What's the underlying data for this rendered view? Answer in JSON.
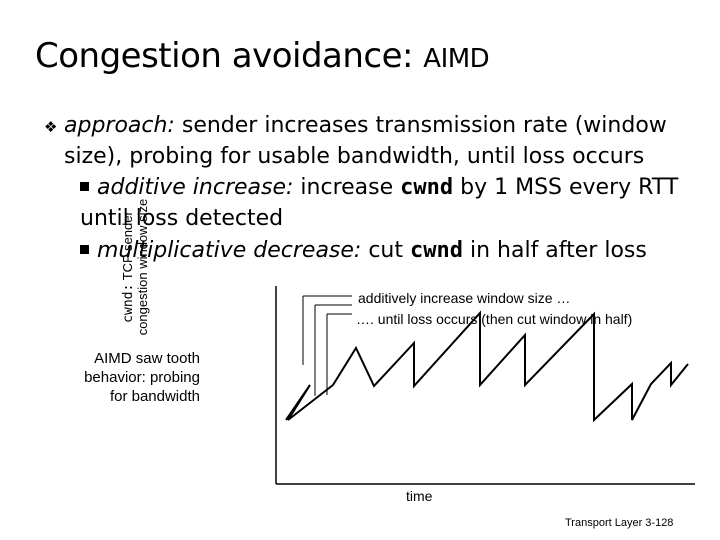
{
  "title": {
    "main": "Congestion avoidance: ",
    "acronym": "AIMD"
  },
  "approach": {
    "label": "approach:",
    "text": " sender increases transmission rate (window size), probing for usable bandwidth, until loss occurs"
  },
  "sub1": {
    "label": "additive increase:",
    "pre": " increase ",
    "code": "cwnd",
    "post": " by 1 MSS every RTT until loss detected"
  },
  "sub2": {
    "label": "multiplicative decrease:",
    "pre": " cut ",
    "code": "cwnd",
    "post": " in half after loss"
  },
  "diagram": {
    "side_text": [
      "AIMD saw tooth",
      "behavior: probing",
      "for bandwidth"
    ],
    "ylabel_code": "cwnd:",
    "ylabel_line1": " TCP sender",
    "ylabel_line2": "congestion window size",
    "annotation1": "additively increase window size …",
    "annotation2": "…. until loss occurs (then cut window in half)",
    "xlabel": "time"
  },
  "footer": "Transport Layer 3-128"
}
